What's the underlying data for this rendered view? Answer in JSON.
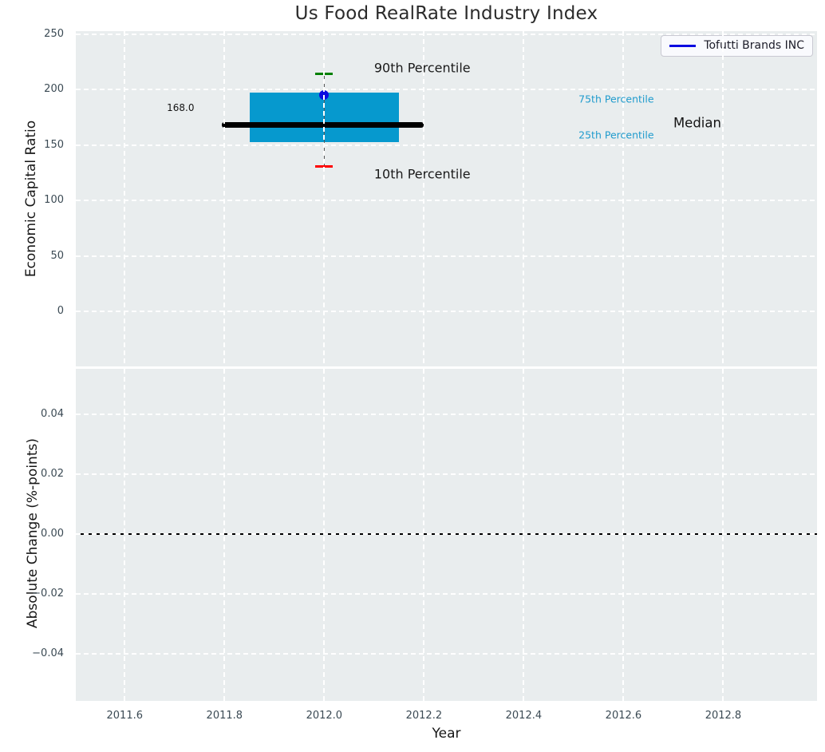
{
  "colors": {
    "axes_bg": "#e9edee",
    "grid": "#ffffff",
    "box_fill": "#0699ce",
    "median_line": "#000000",
    "whisker": "#5a5a5a",
    "cap_high": "#008000",
    "cap_low": "#ff0000",
    "series_blue": "#0b0be0",
    "tick_label": "#3b4a54",
    "axis_label": "#161616",
    "title": "#2b2b2b",
    "percentile_label": "#1f9bcd",
    "zero_line": "#000000",
    "legend_border": "#c9c9d2",
    "legend_bg": "rgba(252,252,255,0.85)",
    "legend_text": "#1c1c28"
  },
  "chart_data": [
    {
      "type": "box",
      "title": "Us Food RealRate Industry Index",
      "xlabel": "Year",
      "ylabel": "Economic Capital Ratio",
      "xlim": [
        2011.502,
        2012.988
      ],
      "ylim": [
        -49.7,
        252.8
      ],
      "xticks": [
        2011.6,
        2011.8,
        2012.0,
        2012.2,
        2012.4,
        2012.6,
        2012.8
      ],
      "xtick_labels": [
        "2011.6",
        "2011.8",
        "2012.0",
        "2012.2",
        "2012.4",
        "2012.6",
        "2012.8"
      ],
      "yticks": [
        0,
        50,
        100,
        150,
        200,
        250
      ],
      "ytick_labels": [
        "0",
        "50",
        "100",
        "150",
        "200",
        "250"
      ],
      "grid": true,
      "legend": {
        "position": "upper right",
        "entries": [
          "Tofutti Brands INC"
        ]
      },
      "boxes": [
        {
          "x": 2012,
          "p10": 131,
          "p25": 153,
          "median": 168,
          "p75": 197,
          "p90": 214,
          "box_x_span": [
            2011.85,
            2012.15
          ],
          "median_x_span": [
            2011.795,
            2012.2
          ],
          "median_label": "168.0"
        }
      ],
      "series": [
        {
          "name": "Tofutti Brands INC",
          "type": "scatter",
          "x": [
            2012
          ],
          "y": [
            195
          ]
        }
      ],
      "annotations": [
        {
          "text": "90th Percentile",
          "x": 2012.1,
          "y": 220,
          "size": 16,
          "color": "#1a1a1a",
          "align": "left"
        },
        {
          "text": "10th Percentile",
          "x": 2012.1,
          "y": 124,
          "size": 16,
          "color": "#1a1a1a",
          "align": "left"
        },
        {
          "text": "75th Percentile",
          "x": 2012.51,
          "y": 191.5,
          "size": 12.5,
          "color": "#1f9bcd",
          "align": "left"
        },
        {
          "text": "25th Percentile",
          "x": 2012.51,
          "y": 159,
          "size": 12.5,
          "color": "#1f9bcd",
          "align": "left"
        },
        {
          "text": "Median",
          "x": 2012.7,
          "y": 170,
          "size": 16.5,
          "color": "#141414",
          "align": "left"
        },
        {
          "text": "168.0",
          "x": 2011.712,
          "y": 184,
          "size": 12,
          "color": "#141414",
          "align": "center"
        }
      ]
    },
    {
      "type": "line",
      "xlabel": "Year",
      "ylabel": "Absolute Change (%-points)",
      "xlim": [
        2011.502,
        2012.988
      ],
      "ylim": [
        -0.0556,
        0.0552
      ],
      "yticks": [
        0.04,
        0.02,
        0,
        -0.02,
        -0.04
      ],
      "ytick_labels": [
        "0.04",
        "0.02",
        "0.00",
        "−0.02",
        "−0.04"
      ],
      "grid": true,
      "zero_line": 0.0,
      "series": []
    }
  ]
}
